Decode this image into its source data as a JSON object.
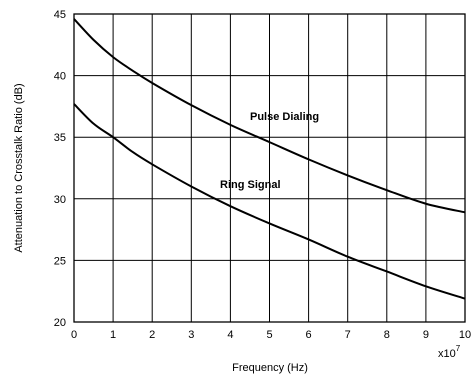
{
  "chart_data": {
    "type": "line",
    "title": "",
    "xlabel": "Frequency (Hz)",
    "ylabel": "Attenuation to Crosstalk Ratio (dB)",
    "x_multiplier_base": "x10",
    "x_multiplier_exp": "7",
    "xlim": [
      0,
      10
    ],
    "ylim": [
      20,
      45
    ],
    "x_ticks": [
      "0",
      "1",
      "2",
      "3",
      "4",
      "5",
      "6",
      "7",
      "8",
      "9",
      "10"
    ],
    "y_ticks": [
      "20",
      "25",
      "30",
      "35",
      "40",
      "45"
    ],
    "x_tick_values": [
      0,
      1,
      2,
      3,
      4,
      5,
      6,
      7,
      8,
      9,
      10
    ],
    "y_tick_values": [
      20,
      25,
      30,
      35,
      40,
      45
    ],
    "grid": true,
    "line_color": "#000000",
    "grid_color": "#000000",
    "series": [
      {
        "annotation": "Pulse Dialing",
        "x": [
          0,
          0.5,
          1,
          1.5,
          2,
          3,
          4,
          5,
          6,
          7,
          8,
          9,
          10
        ],
        "y": [
          44.6,
          42.9,
          41.5,
          40.4,
          39.4,
          37.6,
          36.0,
          34.6,
          33.2,
          31.9,
          30.7,
          29.6,
          28.9
        ]
      },
      {
        "annotation": "Ring Signal",
        "x": [
          0,
          0.5,
          1,
          1.5,
          2,
          3,
          4,
          5,
          6,
          7,
          8,
          9,
          10
        ],
        "y": [
          37.7,
          36.1,
          35.0,
          33.8,
          32.8,
          31.0,
          29.4,
          28.0,
          26.7,
          25.3,
          24.1,
          22.9,
          21.9
        ]
      }
    ]
  }
}
